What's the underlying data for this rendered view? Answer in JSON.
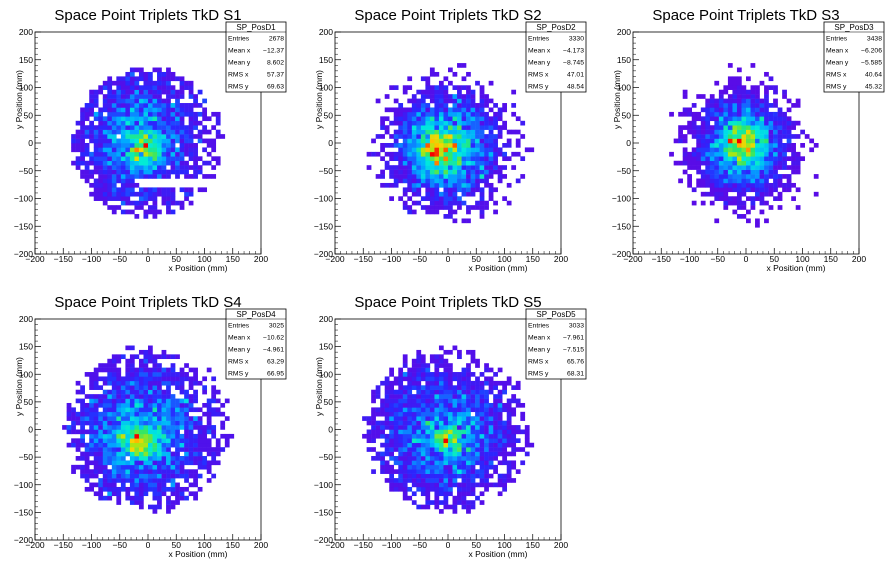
{
  "chart_data": [
    {
      "type": "heatmap",
      "title": "Space Point Triplets TkD S1",
      "xlabel": "x Position (mm)",
      "ylabel": "y Position (mm)",
      "xlim": [
        -200,
        200
      ],
      "ylim": [
        -200,
        200
      ],
      "xticks": [
        "−200",
        "−150",
        "−100",
        "−50",
        "0",
        "50",
        "100",
        "150",
        "200"
      ],
      "yticks": [
        "−200",
        "−150",
        "−100",
        "−50",
        "0",
        "50",
        "100",
        "150",
        "200"
      ],
      "stats": {
        "name": "SP_PosD1",
        "rows": [
          {
            "label": "Entries",
            "value": "2678"
          },
          {
            "label": "Mean x",
            "value": "−12.37"
          },
          {
            "label": "Mean y",
            "value": "8.602"
          },
          {
            "label": "RMS x",
            "value": "57.37"
          },
          {
            "label": "RMS y",
            "value": "69.63"
          }
        ]
      },
      "distribution": {
        "entries": 2678,
        "mean_x": -12.37,
        "mean_y": 8.602,
        "rms_x": 57.37,
        "rms_y": 69.63,
        "radius": 135,
        "gap_band": [
          -80,
          -60
        ],
        "peak": [
          -5,
          -10
        ]
      }
    },
    {
      "type": "heatmap",
      "title": "Space Point Triplets TkD S2",
      "xlabel": "x Position (mm)",
      "ylabel": "y Position (mm)",
      "xlim": [
        -200,
        200
      ],
      "ylim": [
        -200,
        200
      ],
      "xticks": [
        "−200",
        "−150",
        "−100",
        "−50",
        "0",
        "50",
        "100",
        "150",
        "200"
      ],
      "yticks": [
        "−200",
        "−150",
        "−100",
        "−50",
        "0",
        "50",
        "100",
        "150",
        "200"
      ],
      "stats": {
        "name": "SP_PosD2",
        "rows": [
          {
            "label": "Entries",
            "value": "3330"
          },
          {
            "label": "Mean x",
            "value": "−4.173"
          },
          {
            "label": "Mean y",
            "value": "−8.745"
          },
          {
            "label": "RMS x",
            "value": "47.01"
          },
          {
            "label": "RMS y",
            "value": "48.54"
          }
        ]
      },
      "distribution": {
        "entries": 3330,
        "mean_x": -4.173,
        "mean_y": -8.745,
        "rms_x": 47.01,
        "rms_y": 48.54,
        "radius": 150,
        "peak": [
          -20,
          -5
        ]
      }
    },
    {
      "type": "heatmap",
      "title": "Space Point Triplets TkD S3",
      "xlabel": "x Position (mm)",
      "ylabel": "y Position (mm)",
      "xlim": [
        -200,
        200
      ],
      "ylim": [
        -200,
        200
      ],
      "xticks": [
        "−200",
        "−150",
        "−100",
        "−50",
        "0",
        "50",
        "100",
        "150",
        "200"
      ],
      "yticks": [
        "−200",
        "−150",
        "−100",
        "−50",
        "0",
        "50",
        "100",
        "150",
        "200"
      ],
      "stats": {
        "name": "SP_PosD3",
        "rows": [
          {
            "label": "Entries",
            "value": "3438"
          },
          {
            "label": "Mean x",
            "value": "−6.206"
          },
          {
            "label": "Mean y",
            "value": "−5.585"
          },
          {
            "label": "RMS x",
            "value": "40.64"
          },
          {
            "label": "RMS y",
            "value": "45.32"
          }
        ]
      },
      "distribution": {
        "entries": 3438,
        "mean_x": -6.206,
        "mean_y": -5.585,
        "rms_x": 40.64,
        "rms_y": 45.32,
        "radius": 150,
        "peak": [
          -5,
          0
        ]
      }
    },
    {
      "type": "heatmap",
      "title": "Space Point Triplets TkD S4",
      "xlabel": "x Position (mm)",
      "ylabel": "y Position (mm)",
      "xlim": [
        -200,
        200
      ],
      "ylim": [
        -200,
        200
      ],
      "xticks": [
        "−200",
        "−150",
        "−100",
        "−50",
        "0",
        "50",
        "100",
        "150",
        "200"
      ],
      "yticks": [
        "−200",
        "−150",
        "−100",
        "−50",
        "0",
        "50",
        "100",
        "150",
        "200"
      ],
      "stats": {
        "name": "SP_PosD4",
        "rows": [
          {
            "label": "Entries",
            "value": "3025"
          },
          {
            "label": "Mean x",
            "value": "−10.62"
          },
          {
            "label": "Mean y",
            "value": "−4.961"
          },
          {
            "label": "RMS x",
            "value": "63.29"
          },
          {
            "label": "RMS y",
            "value": "66.95"
          }
        ]
      },
      "distribution": {
        "entries": 3025,
        "mean_x": -10.62,
        "mean_y": -4.961,
        "rms_x": 63.29,
        "rms_y": 66.95,
        "radius": 150,
        "peak": [
          -15,
          -25
        ]
      }
    },
    {
      "type": "heatmap",
      "title": "Space Point Triplets TkD S5",
      "xlabel": "x Position (mm)",
      "ylabel": "y Position (mm)",
      "xlim": [
        -200,
        200
      ],
      "ylim": [
        -200,
        200
      ],
      "xticks": [
        "−200",
        "−150",
        "−100",
        "−50",
        "0",
        "50",
        "100",
        "150",
        "200"
      ],
      "yticks": [
        "−200",
        "−150",
        "−100",
        "−50",
        "0",
        "50",
        "100",
        "150",
        "200"
      ],
      "stats": {
        "name": "SP_PosD5",
        "rows": [
          {
            "label": "Entries",
            "value": "3033"
          },
          {
            "label": "Mean x",
            "value": "−7.961"
          },
          {
            "label": "Mean y",
            "value": "−7.515"
          },
          {
            "label": "RMS x",
            "value": "65.76"
          },
          {
            "label": "RMS y",
            "value": "68.31"
          }
        ]
      },
      "distribution": {
        "entries": 3033,
        "mean_x": -7.961,
        "mean_y": -7.515,
        "rms_x": 65.76,
        "rms_y": 68.31,
        "radius": 150,
        "peak": [
          0,
          -20
        ]
      }
    }
  ]
}
